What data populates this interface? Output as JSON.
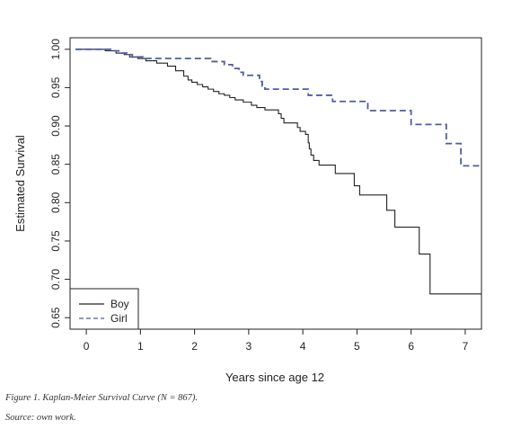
{
  "chart_data": {
    "type": "line",
    "subtype": "step",
    "xlabel": "Years since age 12",
    "ylabel": "Estimated Survival",
    "xlim": [
      -0.3,
      7.3
    ],
    "ylim": [
      0.635,
      1.015
    ],
    "x_ticks": [
      0,
      1,
      2,
      3,
      4,
      5,
      6,
      7
    ],
    "x_tick_labels": [
      "0",
      "1",
      "2",
      "3",
      "4",
      "5",
      "6",
      "7"
    ],
    "y_ticks": [
      0.65,
      0.7,
      0.75,
      0.8,
      0.85,
      0.9,
      0.95,
      1.0
    ],
    "y_tick_labels": [
      "0.65",
      "0.70",
      "0.75",
      "0.80",
      "0.85",
      "0.90",
      "0.95",
      "1.00"
    ],
    "grid": false,
    "legend_position": "bottom-left",
    "series": [
      {
        "name": "Boy",
        "color": "#222222",
        "line_style": "solid",
        "points": [
          [
            -0.2,
            1.0
          ],
          [
            0.35,
            0.998
          ],
          [
            0.55,
            0.995
          ],
          [
            0.7,
            0.993
          ],
          [
            0.8,
            0.99
          ],
          [
            0.95,
            0.988
          ],
          [
            1.1,
            0.985
          ],
          [
            1.3,
            0.982
          ],
          [
            1.5,
            0.978
          ],
          [
            1.65,
            0.972
          ],
          [
            1.8,
            0.965
          ],
          [
            1.88,
            0.96
          ],
          [
            1.95,
            0.957
          ],
          [
            2.05,
            0.954
          ],
          [
            2.15,
            0.951
          ],
          [
            2.25,
            0.948
          ],
          [
            2.35,
            0.945
          ],
          [
            2.45,
            0.942
          ],
          [
            2.55,
            0.94
          ],
          [
            2.65,
            0.937
          ],
          [
            2.75,
            0.934
          ],
          [
            2.9,
            0.931
          ],
          [
            3.05,
            0.927
          ],
          [
            3.15,
            0.924
          ],
          [
            3.3,
            0.921
          ],
          [
            3.55,
            0.916
          ],
          [
            3.6,
            0.91
          ],
          [
            3.65,
            0.904
          ],
          [
            3.9,
            0.898
          ],
          [
            3.95,
            0.893
          ],
          [
            4.05,
            0.889
          ],
          [
            4.1,
            0.878
          ],
          [
            4.12,
            0.87
          ],
          [
            4.15,
            0.862
          ],
          [
            4.2,
            0.855
          ],
          [
            4.3,
            0.849
          ],
          [
            4.6,
            0.838
          ],
          [
            4.95,
            0.822
          ],
          [
            5.05,
            0.81
          ],
          [
            5.55,
            0.79
          ],
          [
            5.7,
            0.768
          ],
          [
            6.15,
            0.733
          ],
          [
            6.35,
            0.681
          ]
        ],
        "x_end": 7.3
      },
      {
        "name": "Girl",
        "color": "#4b5ea3",
        "line_style": "dashed",
        "points": [
          [
            -0.2,
            1.0
          ],
          [
            0.45,
            0.998
          ],
          [
            0.6,
            0.995
          ],
          [
            0.75,
            0.993
          ],
          [
            0.85,
            0.99
          ],
          [
            1.05,
            0.988
          ],
          [
            2.3,
            0.984
          ],
          [
            2.55,
            0.98
          ],
          [
            2.7,
            0.975
          ],
          [
            2.82,
            0.97
          ],
          [
            2.9,
            0.966
          ],
          [
            3.2,
            0.958
          ],
          [
            3.25,
            0.952
          ],
          [
            3.3,
            0.948
          ],
          [
            4.1,
            0.94
          ],
          [
            4.55,
            0.932
          ],
          [
            5.2,
            0.92
          ],
          [
            6.0,
            0.902
          ],
          [
            6.65,
            0.877
          ],
          [
            6.92,
            0.848
          ]
        ],
        "x_end": 7.3
      }
    ]
  },
  "caption": {
    "figure": "Figure 1. Kaplan-Meier Survival Curve (N = 867).",
    "source": "Source: own work."
  }
}
